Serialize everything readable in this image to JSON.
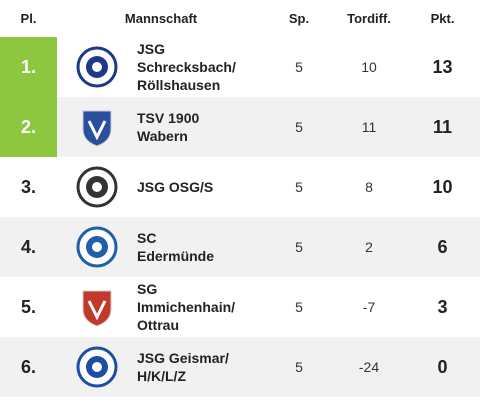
{
  "table": {
    "header": [
      "Pl.",
      "Mannschaft",
      "Sp.",
      "Tordiff.",
      "Pkt."
    ],
    "rows": [
      {
        "rank": "1.",
        "team": "JSG\nSchrecksbach/\nRöllshausen",
        "played": 5,
        "diff": 10,
        "points": 13
      },
      {
        "rank": "2.",
        "team": "TSV 1900\nWabern",
        "played": 5,
        "diff": 11,
        "points": 11
      },
      {
        "rank": "3.",
        "team": "JSG OSG/S",
        "played": 5,
        "diff": 8,
        "points": 10
      },
      {
        "rank": "4.",
        "team": "SC\nEdermünde",
        "played": 5,
        "diff": 2,
        "points": 6
      },
      {
        "rank": "5.",
        "team": "SG\nImmichenhain/\nOttrau",
        "played": 5,
        "diff": -7,
        "points": 3
      },
      {
        "rank": "6.",
        "team": "JSG Geismar/\nH/K/L/Z",
        "played": 5,
        "diff": -24,
        "points": 0
      }
    ]
  }
}
